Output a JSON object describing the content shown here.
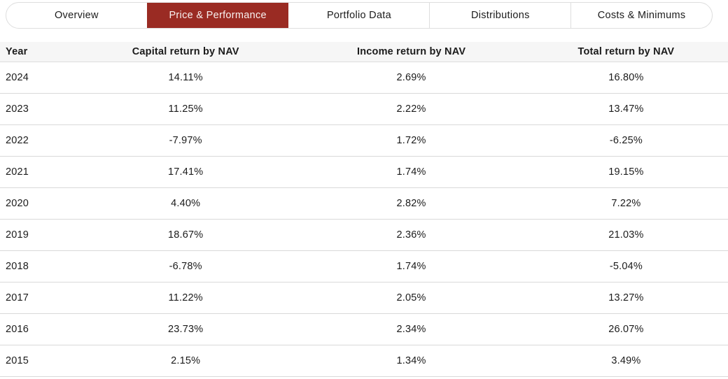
{
  "tabs": {
    "items": [
      {
        "label": "Overview",
        "active": false
      },
      {
        "label": "Price & Performance",
        "active": true
      },
      {
        "label": "Portfolio Data",
        "active": false
      },
      {
        "label": "Distributions",
        "active": false
      },
      {
        "label": "Costs & Minimums",
        "active": false
      }
    ]
  },
  "colors": {
    "active_tab_bg": "#9a2b23",
    "active_tab_text": "#f8f1f0",
    "tab_border": "#dedede",
    "header_bg": "#f6f6f6",
    "row_divider": "#d9d9d9",
    "text": "#1b1b1b"
  },
  "table": {
    "columns": {
      "year": "Year",
      "capital": "Capital return by NAV",
      "income": "Income return by NAV",
      "total": "Total return by NAV"
    },
    "rows": [
      {
        "year": "2024",
        "capital": "14.11%",
        "income": "2.69%",
        "total": "16.80%"
      },
      {
        "year": "2023",
        "capital": "11.25%",
        "income": "2.22%",
        "total": "13.47%"
      },
      {
        "year": "2022",
        "capital": "-7.97%",
        "income": "1.72%",
        "total": "-6.25%"
      },
      {
        "year": "2021",
        "capital": "17.41%",
        "income": "1.74%",
        "total": "19.15%"
      },
      {
        "year": "2020",
        "capital": "4.40%",
        "income": "2.82%",
        "total": "7.22%"
      },
      {
        "year": "2019",
        "capital": "18.67%",
        "income": "2.36%",
        "total": "21.03%"
      },
      {
        "year": "2018",
        "capital": "-6.78%",
        "income": "1.74%",
        "total": "-5.04%"
      },
      {
        "year": "2017",
        "capital": "11.22%",
        "income": "2.05%",
        "total": "13.27%"
      },
      {
        "year": "2016",
        "capital": "23.73%",
        "income": "2.34%",
        "total": "26.07%"
      },
      {
        "year": "2015",
        "capital": "2.15%",
        "income": "1.34%",
        "total": "3.49%"
      }
    ]
  }
}
